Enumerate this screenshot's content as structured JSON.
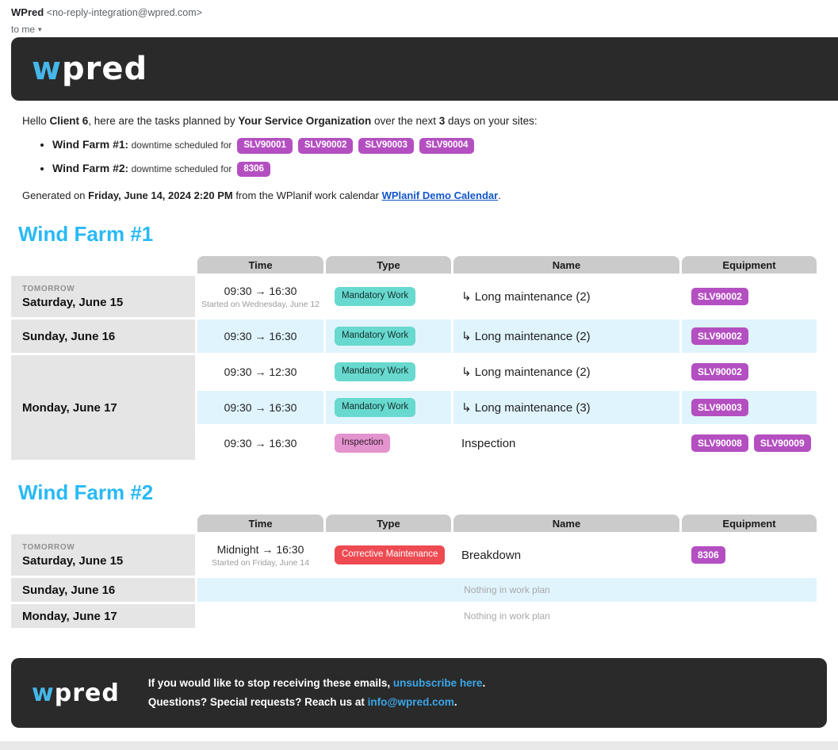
{
  "email_header": {
    "sender_name": "WPred",
    "sender_email": "<no-reply-integration@wpred.com>",
    "recipient_label": "to me",
    "caret_icon": "▾"
  },
  "brand": {
    "logo_first_letter": "w",
    "logo_rest": "pred"
  },
  "colors": {
    "header_background": "#2a2a2a",
    "logo_accent_blue": "#45b6e8",
    "section_heading_cyan": "#29b9f6",
    "equipment_badge_purple": "#b44fc1",
    "mandatory_work_teal": "#68d9cf",
    "inspection_pink": "#e393ce",
    "corrective_maintenance_red": "#ee4a51",
    "row_alt_blue": "#e0f4fd",
    "table_header_gray": "#cbcbcb",
    "date_cell_gray": "#e5e5e5",
    "doc_link_blue": "#1155cc",
    "footer_link_blue": "#3aa7e8"
  },
  "intro": {
    "hello": "Hello ",
    "client": "Client 6",
    "mid1": ", here are the tasks planned by ",
    "org": "Your Service Organization",
    "mid2": " over the next ",
    "days": "3",
    "suffix": " days on your sites:"
  },
  "site_summary": [
    {
      "site": "Wind Farm #1",
      "colon": ": ",
      "text": "downtime scheduled for",
      "badges": [
        "SLV90001",
        "SLV90002",
        "SLV90003",
        "SLV90004"
      ]
    },
    {
      "site": "Wind Farm #2",
      "colon": ": ",
      "text": "downtime scheduled for",
      "badges": [
        "8306"
      ]
    }
  ],
  "generated": {
    "prefix": "Generated on ",
    "datetime": "Friday, June 14, 2024 2:20 PM",
    "middle": " from the WPlanif work calendar ",
    "link": "WPlanif Demo Calendar",
    "suffix": "."
  },
  "sections": [
    {
      "id": "wind-farm-1",
      "title": "Wind Farm #1",
      "columns": [
        "Time",
        "Type",
        "Name",
        "Equipment"
      ],
      "day_groups": [
        {
          "tag": "TOMORROW",
          "date": "Saturday, June 15",
          "rows": [
            {
              "time": "09:30 → 16:30",
              "time_note": "Started on Wednesday, June 12",
              "type": {
                "label": "Mandatory Work",
                "color": "#68d9cf",
                "text_color": "#152f2d"
              },
              "name": "↳ Long maintenance (2)",
              "equipment": [
                "SLV90002"
              ]
            }
          ]
        },
        {
          "date": "Sunday, June 16",
          "rows": [
            {
              "time": "09:30 → 16:30",
              "type": {
                "label": "Mandatory Work",
                "color": "#68d9cf",
                "text_color": "#152f2d"
              },
              "name": "↳ Long maintenance (2)",
              "equipment": [
                "SLV90002"
              ]
            }
          ]
        },
        {
          "date": "Monday, June 17",
          "rows": [
            {
              "time": "09:30 → 12:30",
              "type": {
                "label": "Mandatory Work",
                "color": "#68d9cf",
                "text_color": "#152f2d"
              },
              "name": "↳ Long maintenance (2)",
              "equipment": [
                "SLV90002"
              ]
            },
            {
              "time": "09:30 → 16:30",
              "type": {
                "label": "Mandatory Work",
                "color": "#68d9cf",
                "text_color": "#152f2d"
              },
              "name": "↳ Long maintenance (3)",
              "equipment": [
                "SLV90003"
              ]
            },
            {
              "time": "09:30 → 16:30",
              "type": {
                "label": "Inspection",
                "color": "#e393ce",
                "text_color": "#2e1a29"
              },
              "name": "Inspection",
              "equipment": [
                "SLV90008",
                "SLV90009"
              ]
            }
          ]
        }
      ]
    },
    {
      "id": "wind-farm-2",
      "title": "Wind Farm #2",
      "columns": [
        "Time",
        "Type",
        "Name",
        "Equipment"
      ],
      "day_groups": [
        {
          "tag": "TOMORROW",
          "date": "Saturday, June 15",
          "rows": [
            {
              "time": "Midnight → 16:30",
              "time_note": "Started on Friday, June 14",
              "type": {
                "label": "Corrective Maintenance",
                "color": "#ee4a51",
                "text_color": "#ffffff"
              },
              "name": "Breakdown",
              "equipment": [
                "8306"
              ]
            }
          ]
        },
        {
          "date": "Sunday, June 16",
          "rows": [],
          "empty_text": "Nothing in work plan"
        },
        {
          "date": "Monday, June 17",
          "rows": [],
          "empty_text": "Nothing in work plan"
        }
      ]
    }
  ],
  "footer": {
    "line1_prefix": "If you would like to stop receiving these emails, ",
    "line1_link": "unsubscribe here",
    "line1_suffix": ".",
    "line2_prefix": "Questions? Special requests? Reach us at ",
    "line2_link": "info@wpred.com",
    "line2_suffix": "."
  }
}
